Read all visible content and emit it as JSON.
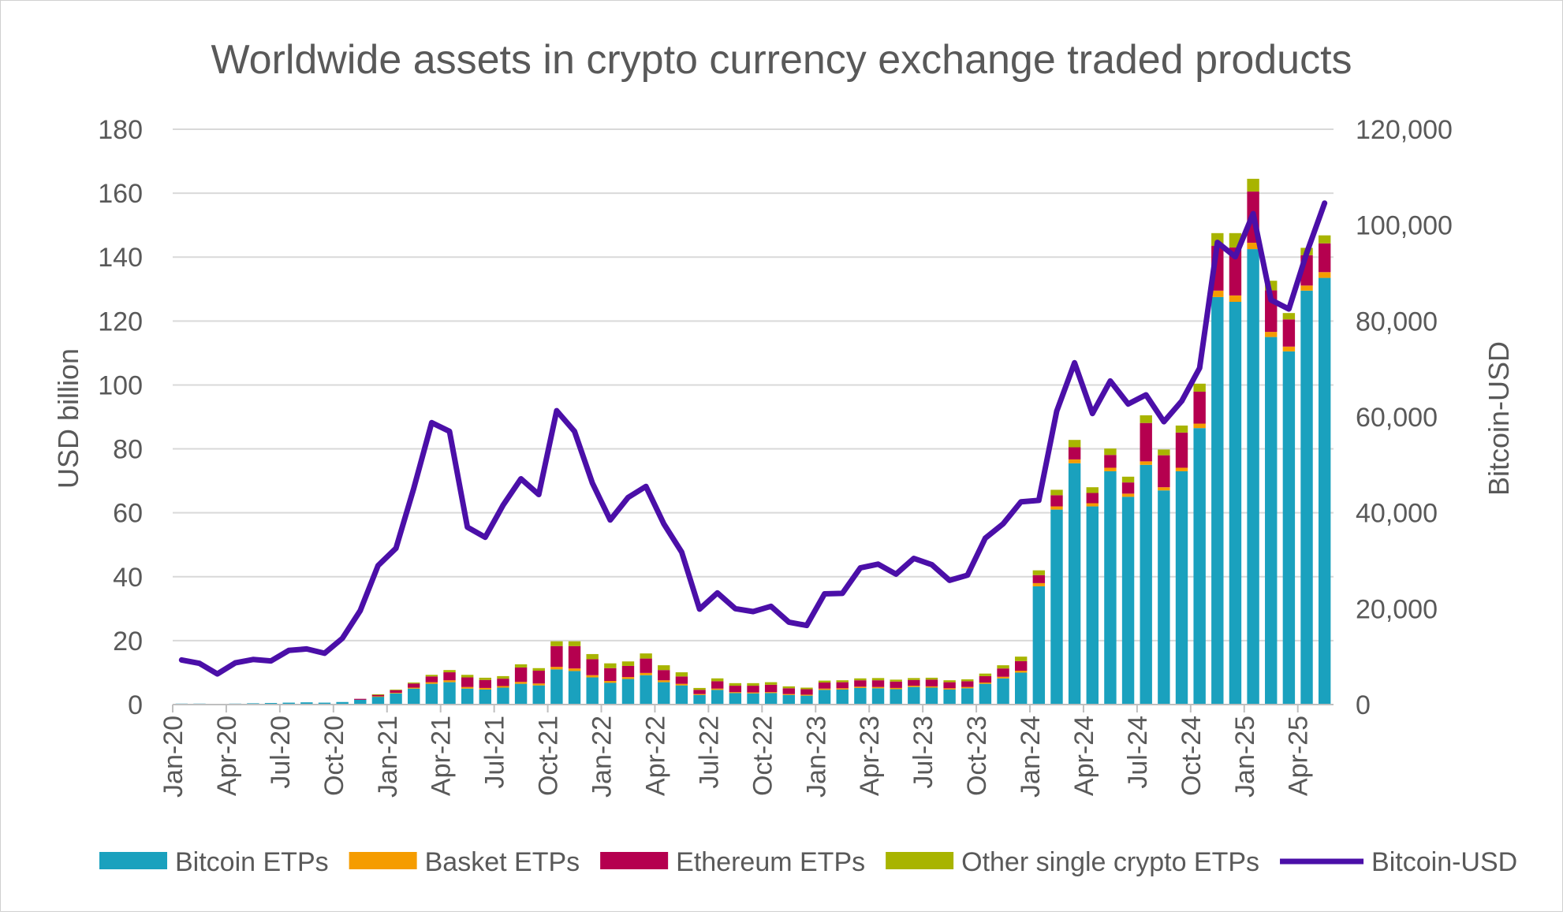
{
  "chart_data": {
    "type": "bar",
    "stacked": true,
    "title": "Worldwide assets in crypto currency exchange traded products",
    "ylabel": "USD billion",
    "y2label": "Bitcoin-USD",
    "ylim": [
      0,
      180
    ],
    "y2lim": [
      0,
      120000
    ],
    "yticks": [
      "0",
      "20",
      "40",
      "60",
      "80",
      "100",
      "120",
      "140",
      "160",
      "180"
    ],
    "y2ticks": [
      "0",
      "20,000",
      "40,000",
      "60,000",
      "80,000",
      "100,000",
      "120,000"
    ],
    "xtick_labels": [
      "Jan-20",
      "Apr-20",
      "Jul-20",
      "Oct-20",
      "Jan-21",
      "Apr-21",
      "Jul-21",
      "Oct-21",
      "Jan-22",
      "Apr-22",
      "Jul-22",
      "Oct-22",
      "Jan-23",
      "Apr-23",
      "Jul-23",
      "Oct-23",
      "Jan-24",
      "Apr-24",
      "Jul-24",
      "Oct-24",
      "Jan-25",
      "Apr-25"
    ],
    "grid": true,
    "legend_position": "bottom",
    "categories": [
      "Jan-20",
      "Feb-20",
      "Mar-20",
      "Apr-20",
      "May-20",
      "Jun-20",
      "Jul-20",
      "Aug-20",
      "Sep-20",
      "Oct-20",
      "Nov-20",
      "Dec-20",
      "Jan-21",
      "Feb-21",
      "Mar-21",
      "Apr-21",
      "May-21",
      "Jun-21",
      "Jul-21",
      "Aug-21",
      "Sep-21",
      "Oct-21",
      "Nov-21",
      "Dec-21",
      "Jan-22",
      "Feb-22",
      "Mar-22",
      "Apr-22",
      "May-22",
      "Jun-22",
      "Jul-22",
      "Aug-22",
      "Sep-22",
      "Oct-22",
      "Nov-22",
      "Dec-22",
      "Jan-23",
      "Feb-23",
      "Mar-23",
      "Apr-23",
      "May-23",
      "Jun-23",
      "Jul-23",
      "Aug-23",
      "Sep-23",
      "Oct-23",
      "Nov-23",
      "Dec-23",
      "Jan-24",
      "Feb-24",
      "Mar-24",
      "Apr-24",
      "May-24",
      "Jun-24",
      "Jul-24",
      "Aug-24",
      "Sep-24",
      "Oct-24",
      "Nov-24",
      "Dec-24",
      "Jan-25",
      "Feb-25",
      "Mar-25",
      "Apr-25",
      "May-25"
    ],
    "series": [
      {
        "name": "Bitcoin ETPs",
        "color": "#1AA1BE",
        "kind": "bar",
        "values": [
          0.3,
          0.3,
          0.2,
          0.3,
          0.4,
          0.5,
          0.6,
          0.7,
          0.6,
          0.8,
          1.5,
          2.5,
          3.5,
          5,
          6.5,
          7,
          5,
          4.7,
          5.3,
          6.5,
          6,
          11,
          10.5,
          8.5,
          6.8,
          8,
          9.2,
          7,
          6,
          3,
          4.6,
          3.6,
          3.5,
          3.6,
          3,
          2.8,
          4.6,
          4.7,
          5.2,
          5.1,
          4.8,
          5.5,
          5.3,
          4.7,
          5.1,
          6.5,
          8.2,
          10,
          37,
          61,
          75.5,
          62,
          73,
          65,
          75,
          67,
          73,
          86.5,
          127.5,
          126,
          142.5,
          115,
          110.5,
          129.5,
          133.5
        ]
      },
      {
        "name": "Basket ETPs",
        "color": "#F59C00",
        "kind": "bar",
        "values": [
          0,
          0,
          0,
          0,
          0,
          0,
          0,
          0,
          0,
          0,
          0,
          0.1,
          0.2,
          0.3,
          0.5,
          0.6,
          0.5,
          0.5,
          0.5,
          0.6,
          0.6,
          0.8,
          0.8,
          0.7,
          0.6,
          0.6,
          0.7,
          0.6,
          0.5,
          0.3,
          0.4,
          0.3,
          0.3,
          0.3,
          0.3,
          0.3,
          0.4,
          0.4,
          0.4,
          0.4,
          0.4,
          0.4,
          0.4,
          0.4,
          0.4,
          0.4,
          0.5,
          0.6,
          1,
          1,
          1.2,
          1,
          1.1,
          1,
          1.1,
          1,
          1.1,
          1.4,
          2,
          2,
          2,
          1.6,
          1.5,
          1.6,
          1.8
        ]
      },
      {
        "name": "Ethereum ETPs",
        "color": "#B5004F",
        "kind": "bar",
        "values": [
          0,
          0,
          0,
          0,
          0,
          0,
          0,
          0,
          0,
          0,
          0.3,
          0.5,
          0.8,
          1.3,
          1.8,
          2.5,
          3,
          2.5,
          2.3,
          4.5,
          4,
          6.5,
          7,
          5,
          4,
          3.5,
          4.5,
          3.2,
          2.3,
          1.3,
          2.3,
          2,
          2.1,
          2.3,
          1.8,
          1.7,
          1.9,
          1.9,
          2,
          2.1,
          2,
          1.8,
          2.1,
          1.9,
          1.8,
          2,
          2.6,
          3,
          2.5,
          3.5,
          3.8,
          3.2,
          4,
          3.5,
          12,
          10,
          11,
          10,
          14,
          15,
          16,
          13,
          8.5,
          9.5,
          9
        ]
      },
      {
        "name": "Other single crypto ETPs",
        "color": "#A8B400",
        "kind": "bar",
        "values": [
          0,
          0,
          0,
          0,
          0,
          0,
          0,
          0,
          0,
          0,
          0,
          0.1,
          0.2,
          0.3,
          0.5,
          0.7,
          0.8,
          0.7,
          0.8,
          1,
          0.8,
          1.5,
          1.5,
          1.6,
          1.5,
          1.4,
          1.6,
          1.5,
          1.3,
          0.6,
          0.9,
          0.8,
          0.8,
          0.8,
          0.6,
          0.5,
          0.6,
          0.6,
          0.6,
          0.7,
          0.6,
          0.6,
          0.6,
          0.6,
          0.6,
          0.8,
          1,
          1.4,
          1.5,
          1.7,
          2.3,
          1.8,
          2,
          1.8,
          2.4,
          1.8,
          2.2,
          2.5,
          4,
          4.5,
          4,
          3,
          2,
          2.3,
          2.5
        ]
      },
      {
        "name": "Bitcoin-USD",
        "color": "#4B0FA8",
        "kind": "line",
        "axis": "right",
        "values": [
          9300,
          8600,
          6400,
          8700,
          9400,
          9100,
          11300,
          11600,
          10700,
          13800,
          19600,
          29000,
          32600,
          45100,
          58800,
          57000,
          37000,
          34900,
          41600,
          47100,
          43800,
          61300,
          57000,
          46200,
          38500,
          43200,
          45500,
          37700,
          31800,
          19900,
          23300,
          20000,
          19400,
          20500,
          17200,
          16500,
          23100,
          23200,
          28500,
          29300,
          27200,
          30500,
          29200,
          25900,
          27000,
          34700,
          37700,
          42300,
          42600,
          61200,
          71300,
          60700,
          67500,
          62700,
          64600,
          59000,
          63300,
          70200,
          96400,
          93400,
          102400,
          84400,
          82500,
          94200,
          104600
        ]
      }
    ]
  },
  "legend": {
    "items": [
      {
        "label": "Bitcoin ETPs",
        "color": "#1AA1BE",
        "kind": "bar"
      },
      {
        "label": "Basket ETPs",
        "color": "#F59C00",
        "kind": "bar"
      },
      {
        "label": "Ethereum ETPs",
        "color": "#B5004F",
        "kind": "bar"
      },
      {
        "label": "Other single crypto ETPs",
        "color": "#A8B400",
        "kind": "bar"
      },
      {
        "label": "Bitcoin-USD",
        "color": "#4B0FA8",
        "kind": "line"
      }
    ]
  }
}
